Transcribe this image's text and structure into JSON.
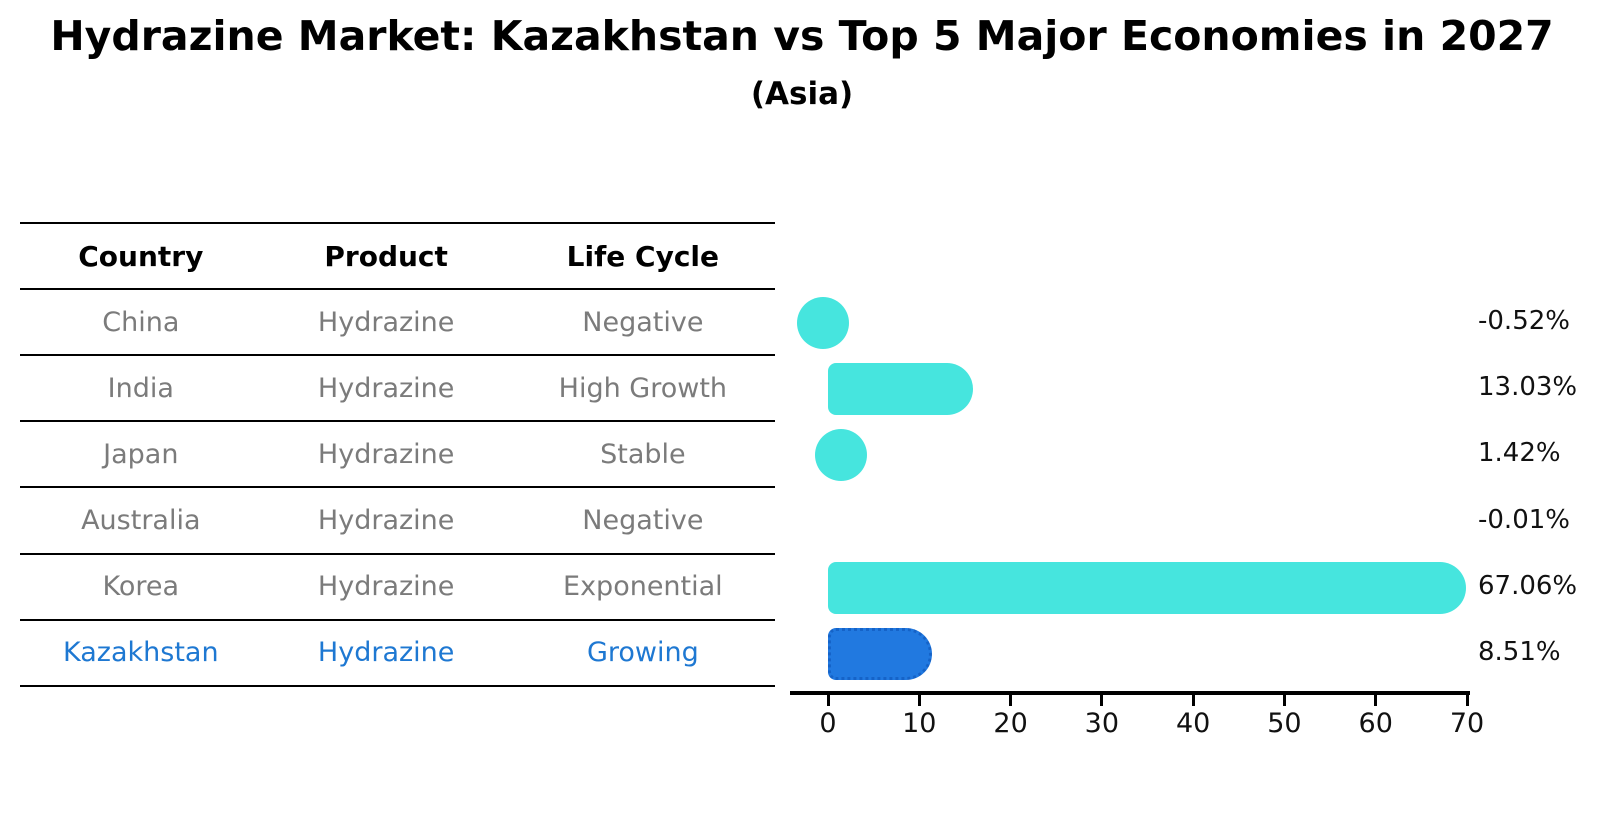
{
  "header": {
    "title": "Hydrazine Market: Kazakhstan vs Top 5 Major Economies in 2027",
    "subtitle": "(Asia)"
  },
  "table": {
    "columns": [
      "Country",
      "Product",
      "Life Cycle"
    ],
    "rows": [
      {
        "country": "China",
        "product": "Hydrazine",
        "life_cycle": "Negative",
        "highlight": false
      },
      {
        "country": "India",
        "product": "Hydrazine",
        "life_cycle": "High Growth",
        "highlight": false
      },
      {
        "country": "Japan",
        "product": "Hydrazine",
        "life_cycle": "Stable",
        "highlight": false
      },
      {
        "country": "Australia",
        "product": "Hydrazine",
        "life_cycle": "Negative",
        "highlight": false
      },
      {
        "country": "Korea",
        "product": "Hydrazine",
        "life_cycle": "Exponential",
        "highlight": false
      },
      {
        "country": "Kazakhstan",
        "product": "Hydrazine",
        "life_cycle": "Growing",
        "highlight": true
      }
    ]
  },
  "chart_data": {
    "type": "bar",
    "orientation": "horizontal",
    "title": "Hydrazine Market: Kazakhstan vs Top 5 Major Economies in 2027",
    "subtitle": "(Asia)",
    "categories": [
      "China",
      "India",
      "Japan",
      "Australia",
      "Korea",
      "Kazakhstan"
    ],
    "values": [
      -0.52,
      13.03,
      1.42,
      -0.01,
      67.06,
      8.51
    ],
    "value_labels": [
      "-0.52%",
      "13.03%",
      "1.42%",
      "-0.01%",
      "67.06%",
      "8.51%"
    ],
    "xlabel": "",
    "ylabel": "",
    "xlim": [
      -4,
      70
    ],
    "x_ticks": [
      0,
      10,
      20,
      30,
      40,
      50,
      60,
      70
    ],
    "grid": false,
    "legend": false,
    "highlight_index": 5,
    "colors": {
      "bar_default": "#46E5DE",
      "bar_highlight": "#2179E0",
      "bar_highlight_border": "#1563C8",
      "highlight_text": "#1E78D2",
      "cell_text": "#7B7B7B",
      "header_text": "#000000",
      "axis": "#000000",
      "value_text": "#111111"
    }
  }
}
